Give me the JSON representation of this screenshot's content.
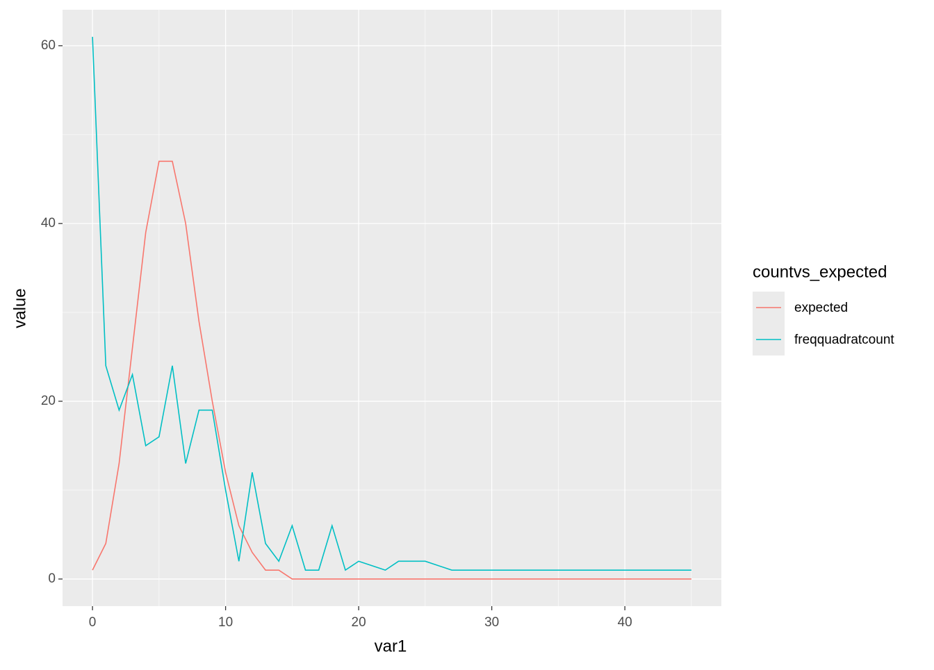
{
  "chart_data": {
    "type": "line",
    "x_label": "var1",
    "y_label": "value",
    "x": [
      0,
      1,
      2,
      3,
      4,
      5,
      6,
      7,
      8,
      9,
      10,
      11,
      12,
      13,
      14,
      15,
      16,
      17,
      18,
      19,
      20,
      22,
      23,
      24,
      25,
      27,
      45
    ],
    "series": [
      {
        "name": "expected",
        "color": "#f8766d",
        "values": [
          1,
          4,
          13,
          26,
          39,
          47,
          47,
          40,
          29,
          20,
          12,
          6,
          3,
          1,
          1,
          0,
          0,
          0,
          0,
          0,
          0,
          0,
          0,
          0,
          0,
          0,
          0
        ]
      },
      {
        "name": "freqquadratcount",
        "color": "#00bfc4",
        "values": [
          61,
          24,
          19,
          23,
          15,
          16,
          24,
          13,
          19,
          19,
          10,
          2,
          12,
          4,
          2,
          6,
          1,
          1,
          6,
          1,
          2,
          1,
          2,
          2,
          2,
          1,
          1
        ]
      }
    ],
    "xlim": [
      -2.25,
      47.25
    ],
    "xticks": [
      0,
      10,
      20,
      30,
      40
    ],
    "ylim": [
      -3.05,
      64.05
    ],
    "yticks": [
      0,
      20,
      40,
      60
    ],
    "grid": true,
    "legend": {
      "title": "countvs_expected",
      "position": "right"
    }
  }
}
